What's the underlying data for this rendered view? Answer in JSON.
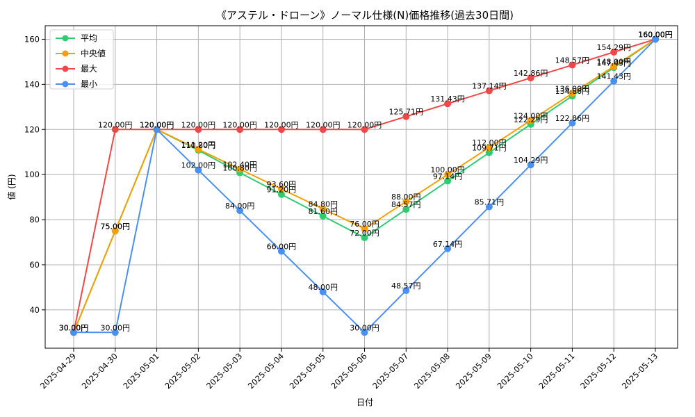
{
  "chart_data": {
    "type": "line",
    "title": "《アステル・ドローン》ノーマル仕様(N)価格推移(過去30日間)",
    "xlabel": "日付",
    "ylabel": "値 (円)",
    "value_suffix": "円",
    "ylim": [
      23,
      166
    ],
    "yticks": [
      40,
      60,
      80,
      100,
      120,
      140,
      160
    ],
    "grid": true,
    "legend_position": "top-left",
    "categories": [
      "2025-04-29",
      "2025-04-30",
      "2025-05-01",
      "2025-05-02",
      "2025-05-03",
      "2025-05-04",
      "2025-05-05",
      "2025-05-06",
      "2025-05-07",
      "2025-05-08",
      "2025-05-09",
      "2025-05-10",
      "2025-05-11",
      "2025-05-12",
      "2025-05-13"
    ],
    "series": [
      {
        "name": "平均",
        "color": "#2ecc71",
        "values": [
          30.0,
          75.0,
          120.0,
          110.8,
          100.8,
          91.2,
          81.6,
          72.0,
          84.57,
          97.14,
          109.71,
          122.29,
          134.86,
          147.43,
          160.0
        ]
      },
      {
        "name": "中央値",
        "color": "#f5a000",
        "values": [
          30.0,
          75.0,
          120.0,
          111.2,
          102.4,
          93.6,
          84.8,
          76.0,
          88.0,
          100.0,
          112.0,
          124.0,
          136.0,
          148.0,
          160.0
        ]
      },
      {
        "name": "最大",
        "color": "#f04848",
        "values": [
          30.0,
          120.0,
          120.0,
          120.0,
          120.0,
          120.0,
          120.0,
          120.0,
          125.71,
          131.43,
          137.14,
          142.86,
          148.57,
          154.29,
          160.0
        ]
      },
      {
        "name": "最小",
        "color": "#4a90f0",
        "values": [
          30.0,
          30.0,
          120.0,
          102.0,
          84.0,
          66.0,
          48.0,
          30.0,
          48.57,
          67.14,
          85.71,
          104.29,
          122.86,
          141.43,
          160.0
        ]
      }
    ]
  }
}
